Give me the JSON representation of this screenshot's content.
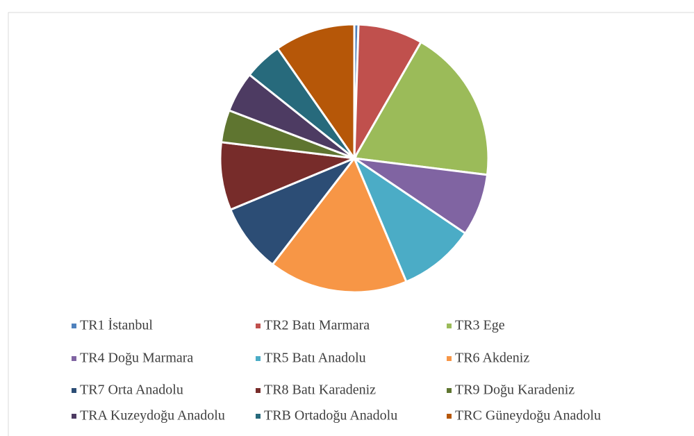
{
  "chart_data": {
    "type": "pie",
    "categories": [
      "TR1 İstanbul",
      "TR2 Batı Marmara",
      "TR3 Ege",
      "TR4 Doğu Marmara",
      "TR5 Batı Anadolu",
      "TR6 Akdeniz",
      "TR7 Orta Anadolu",
      "TR8 Batı Karadeniz",
      "TR9 Doğu Karadeniz",
      "TRA Kuzeydoğu Anadolu",
      "TRB Ortadoğu Anadolu",
      "TRC Güneydoğu Anadolu"
    ],
    "values": [
      0.5,
      7.8,
      18.7,
      7.5,
      9.2,
      16.8,
      8.3,
      8.2,
      3.9,
      4.9,
      4.6,
      9.7
    ],
    "colors": [
      "#4f81bd",
      "#c0504d",
      "#9bbb59",
      "#8064a2",
      "#4bacc6",
      "#f79646",
      "#2c4d75",
      "#772c2a",
      "#5f7530",
      "#4d3b62",
      "#276a7c",
      "#b65708"
    ],
    "legend": "bottom"
  }
}
